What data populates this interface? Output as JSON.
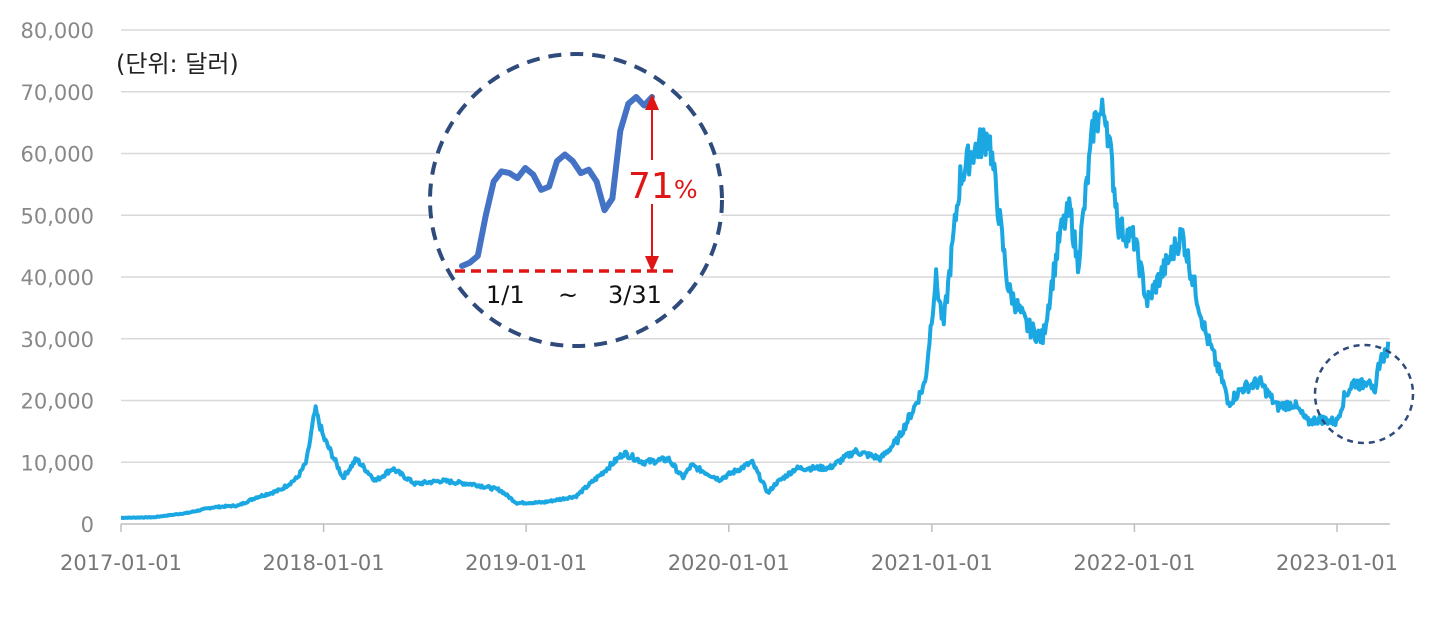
{
  "chart_data": {
    "type": "line",
    "unit_label": "(단위: 달러)",
    "title": "",
    "xlabel": "",
    "ylabel": "",
    "ylim": [
      0,
      80000
    ],
    "y_ticks": [
      0,
      10000,
      20000,
      30000,
      40000,
      50000,
      60000,
      70000,
      80000
    ],
    "y_tick_labels": [
      "0",
      "10,000",
      "20,000",
      "30,000",
      "40,000",
      "50,000",
      "60,000",
      "70,000",
      "80,000"
    ],
    "x_range": [
      "2017-01-01",
      "2023-04-05"
    ],
    "x_ticks": [
      "2017-01-01",
      "2018-01-01",
      "2019-01-01",
      "2020-01-01",
      "2021-01-01",
      "2022-01-01",
      "2023-01-01"
    ],
    "grid": "horizontal",
    "line_color": "#1aa7e2",
    "series": [
      {
        "name": "",
        "x": [
          "2017-01-01",
          "2017-03-01",
          "2017-05-01",
          "2017-06-15",
          "2017-08-01",
          "2017-09-01",
          "2017-10-15",
          "2017-11-15",
          "2017-12-01",
          "2017-12-17",
          "2018-01-01",
          "2018-01-15",
          "2018-02-05",
          "2018-03-01",
          "2018-04-05",
          "2018-05-05",
          "2018-06-15",
          "2018-08-01",
          "2018-10-01",
          "2018-11-15",
          "2018-12-15",
          "2019-02-01",
          "2019-04-01",
          "2019-05-15",
          "2019-06-26",
          "2019-08-01",
          "2019-09-15",
          "2019-10-10",
          "2019-10-26",
          "2019-12-15",
          "2020-02-12",
          "2020-03-12",
          "2020-03-25",
          "2020-05-01",
          "2020-07-01",
          "2020-08-15",
          "2020-10-01",
          "2020-11-01",
          "2020-12-01",
          "2020-12-20",
          "2021-01-08",
          "2021-01-22",
          "2021-02-21",
          "2021-03-13",
          "2021-04-14",
          "2021-05-19",
          "2021-06-22",
          "2021-07-20",
          "2021-08-20",
          "2021-09-07",
          "2021-09-21",
          "2021-10-20",
          "2021-11-10",
          "2021-12-04",
          "2022-01-01",
          "2022-01-24",
          "2022-03-28",
          "2022-05-09",
          "2022-06-13",
          "2022-06-18",
          "2022-07-15",
          "2022-08-15",
          "2022-09-15",
          "2022-10-15",
          "2022-11-09",
          "2022-12-01",
          "2022-12-31",
          "2023-01-14",
          "2023-01-31",
          "2023-02-15",
          "2023-03-01",
          "2023-03-10",
          "2023-03-17",
          "2023-03-31",
          "2023-04-05"
        ],
        "y": [
          1000,
          1100,
          1800,
          2700,
          3000,
          4300,
          5500,
          7500,
          10000,
          18500,
          14000,
          11500,
          7500,
          10500,
          7000,
          9000,
          6500,
          7000,
          6400,
          5500,
          3400,
          3500,
          4500,
          8000,
          11500,
          10000,
          10500,
          7500,
          9500,
          7200,
          10000,
          5000,
          6500,
          9000,
          9100,
          11800,
          10600,
          13700,
          19000,
          23000,
          40000,
          32000,
          56000,
          60000,
          63000,
          38000,
          32000,
          30000,
          47000,
          51000,
          42000,
          65000,
          67000,
          48000,
          46000,
          36000,
          47000,
          31000,
          22000,
          19500,
          22000,
          23000,
          19000,
          19500,
          16500,
          17000,
          16500,
          20500,
          23000,
          22500,
          24000,
          20000,
          26000,
          28000,
          28500
        ]
      }
    ],
    "inset": {
      "range_start_label": "1/1",
      "range_sep": "~",
      "range_end_label": "3/31",
      "change_value": "71",
      "change_unit": "%",
      "line_color": "#4472c4",
      "arrow_color": "#e01515",
      "circle_color": "#2f4b7c",
      "series_relative": [
        0.0,
        0.02,
        0.06,
        0.3,
        0.5,
        0.56,
        0.55,
        0.52,
        0.58,
        0.54,
        0.45,
        0.47,
        0.62,
        0.66,
        0.62,
        0.55,
        0.57,
        0.5,
        0.33,
        0.4,
        0.8,
        0.96,
        1.0,
        0.95,
        1.0
      ]
    }
  }
}
